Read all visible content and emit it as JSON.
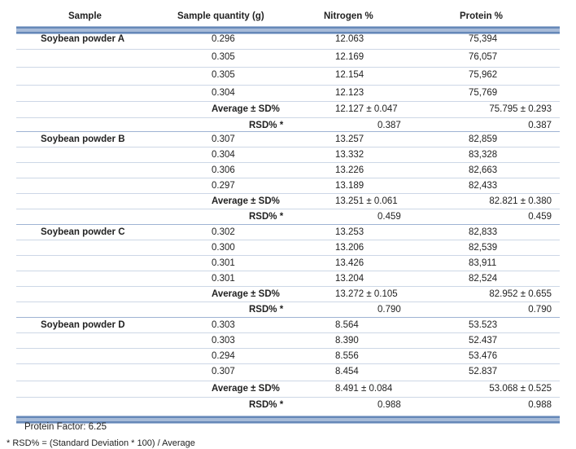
{
  "headers": [
    "Sample",
    "Sample quantity (g)",
    "Nitrogen %",
    "Protein %"
  ],
  "groups": [
    {
      "name": "Soybean powder A",
      "rows": [
        {
          "qty": "0.296",
          "n": "12.063",
          "p": "75,394"
        },
        {
          "qty": "0.305",
          "n": "12.169",
          "p": "76,057"
        },
        {
          "qty": "0.305",
          "n": "12.154",
          "p": "75,962"
        },
        {
          "qty": "0.304",
          "n": "12.123",
          "p": "75,769"
        }
      ],
      "avg_label": "Average ± SD%",
      "avg_n": "12.127 ± 0.047",
      "avg_p": "75.795 ± 0.293",
      "rsd_label": "RSD% *",
      "rsd_n": "0.387",
      "rsd_p": "0.387"
    },
    {
      "name": "Soybean powder B",
      "rows": [
        {
          "qty": "0.307",
          "n": "13.257",
          "p": "82,859"
        },
        {
          "qty": "0.304",
          "n": "13.332",
          "p": "83,328"
        },
        {
          "qty": "0.306",
          "n": "13.226",
          "p": "82,663"
        },
        {
          "qty": "0.297",
          "n": "13.189",
          "p": "82,433"
        }
      ],
      "avg_label": "Average ± SD%",
      "avg_n": "13.251 ± 0.061",
      "avg_p": "82.821 ± 0.380",
      "rsd_label": "RSD% *",
      "rsd_n": "0.459",
      "rsd_p": "0.459"
    },
    {
      "name": "Soybean powder C",
      "rows": [
        {
          "qty": "0.302",
          "n": "13.253",
          "p": "82,833"
        },
        {
          "qty": "0.300",
          "n": "13.206",
          "p": "82,539"
        },
        {
          "qty": "0.301",
          "n": "13.426",
          "p": "83,911"
        },
        {
          "qty": "0.301",
          "n": "13.204",
          "p": "82,524"
        }
      ],
      "avg_label": "Average ± SD%",
      "avg_n": "13.272 ± 0.105",
      "avg_p": "82.952 ± 0.655",
      "rsd_label": "RSD% *",
      "rsd_n": "0.790",
      "rsd_p": "0.790"
    },
    {
      "name": "Soybean powder D",
      "rows": [
        {
          "qty": "0.303",
          "n": "8.564",
          "p": "53.523"
        },
        {
          "qty": "0.303",
          "n": "8.390",
          "p": "52.437"
        },
        {
          "qty": "0.294",
          "n": "8.556",
          "p": "53.476"
        },
        {
          "qty": "0.307",
          "n": "8.454",
          "p": "52.837"
        }
      ],
      "avg_label": "Average ± SD%",
      "avg_n": "8.491 ± 0.084",
      "avg_p": "53.068 ± 0.525",
      "rsd_label": "RSD% *",
      "rsd_n": "0.988",
      "rsd_p": "0.988"
    }
  ],
  "footnotes": {
    "protein_factor": "Protein Factor: 6.25",
    "rsd_definition": "* RSD% = (Standard Deviation * 100) / Average"
  }
}
